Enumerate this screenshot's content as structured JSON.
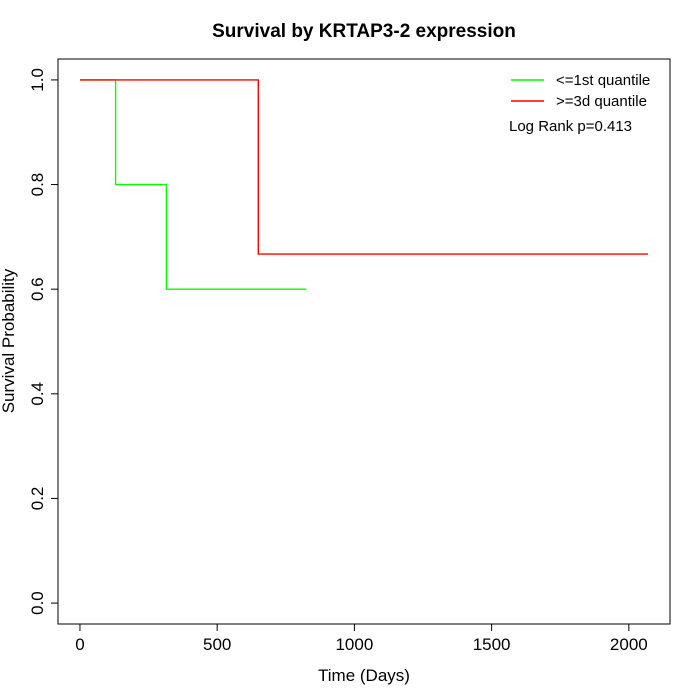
{
  "chart_data": {
    "type": "line",
    "title": "Survival by KRTAP3-2 expression",
    "xlabel": "Time (Days)",
    "ylabel": "Survival Probability",
    "xlim": [
      -80,
      2150
    ],
    "ylim": [
      -0.04,
      1.04
    ],
    "x_ticks": [
      0,
      500,
      1000,
      1500,
      2000
    ],
    "y_ticks": [
      0.0,
      0.2,
      0.4,
      0.6,
      0.8,
      1.0
    ],
    "x_tick_labels": [
      "0",
      "500",
      "1000",
      "1500",
      "2000"
    ],
    "y_tick_labels": [
      "0.0",
      "0.2",
      "0.4",
      "0.6",
      "0.8",
      "1.0"
    ],
    "grid": false,
    "legend_position": "top-right",
    "series": [
      {
        "name": "<=1st quantile",
        "color": "#00ff00",
        "step": true,
        "x": [
          0,
          130,
          130,
          315,
          315,
          825
        ],
        "y": [
          1.0,
          1.0,
          0.8,
          0.8,
          0.6,
          0.6
        ]
      },
      {
        "name": ">=3d quantile",
        "color": "#ff0000",
        "step": true,
        "x": [
          0,
          650,
          650,
          2070
        ],
        "y": [
          1.0,
          1.0,
          0.667,
          0.667
        ]
      }
    ],
    "annotations": [
      "Log Rank p=0.413"
    ]
  }
}
